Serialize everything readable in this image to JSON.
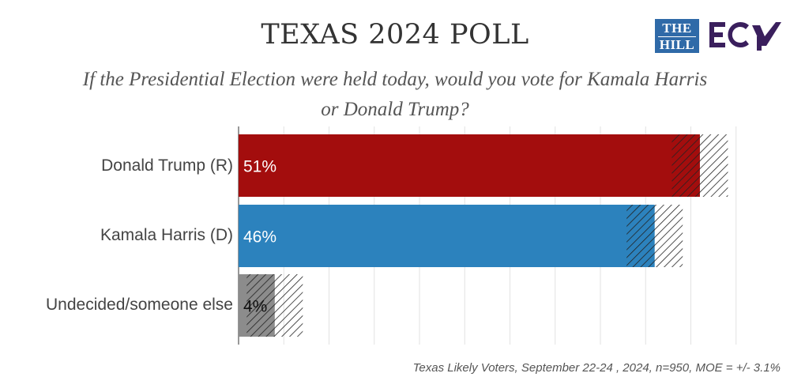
{
  "header": {
    "title": "TEXAS 2024 POLL",
    "subtitle": "If the Presidential Election were held today, would you vote for Kamala Harris or Donald Trump?"
  },
  "logos": {
    "the_hill_line1": "THE",
    "the_hill_line2": "HILL",
    "ecp": "ECP"
  },
  "colors": {
    "trump": "#a30d0d",
    "harris": "#2c82bd",
    "undecided": "#8c8c8c",
    "ecp_purple": "#3a1f5d",
    "hill_blue": "#2f6aa8"
  },
  "chart_data": {
    "type": "bar",
    "orientation": "horizontal",
    "title": "TEXAS 2024 POLL",
    "subtitle": "If the Presidential Election were held today, would you vote for Kamala Harris or Donald Trump?",
    "categories": [
      "Donald Trump (R)",
      "Kamala Harris (D)",
      "Undecided/someone else"
    ],
    "values": [
      51,
      46,
      4
    ],
    "value_labels": [
      "51%",
      "46%",
      "4%"
    ],
    "margin_of_error": 3.1,
    "xlim": [
      0,
      55
    ],
    "grid": true,
    "error_band": "hatched ± MOE"
  },
  "footer": "Texas Likely Voters, September 22-24 , 2024, n=950, MOE = +/- 3.1%"
}
